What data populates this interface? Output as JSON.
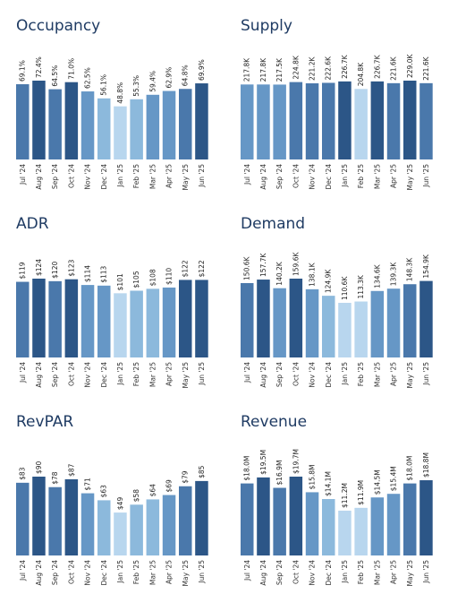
{
  "chart_data": [
    {
      "type": "bar",
      "title": "Occupancy",
      "categories": [
        "Jul '24",
        "Aug '24",
        "Sep '24",
        "Oct '24",
        "Nov '24",
        "Dec '24",
        "Jan '25",
        "Feb '25",
        "Mar '25",
        "Apr '25",
        "May '25",
        "Jun '25"
      ],
      "values": [
        69.1,
        72.4,
        64.5,
        71.0,
        62.5,
        56.1,
        48.8,
        55.3,
        59.4,
        62.9,
        64.8,
        69.9
      ],
      "labels": [
        "69.1%",
        "72.4%",
        "64.5%",
        "71.0%",
        "62.5%",
        "56.1%",
        "48.8%",
        "55.3%",
        "59.4%",
        "62.9%",
        "64.8%",
        "69.9%"
      ],
      "ylim": [
        0,
        72.4
      ],
      "grid": false
    },
    {
      "type": "bar",
      "title": "Supply",
      "categories": [
        "Jul '24",
        "Aug '24",
        "Sep '24",
        "Oct '24",
        "Nov '24",
        "Dec '24",
        "Jan '25",
        "Feb '25",
        "Mar '25",
        "Apr '25",
        "May '25",
        "Jun '25"
      ],
      "values": [
        217.8,
        217.8,
        217.5,
        224.8,
        221.2,
        222.6,
        226.7,
        204.8,
        226.7,
        221.6,
        229.0,
        221.6
      ],
      "labels": [
        "217.8K",
        "217.8K",
        "217.5K",
        "224.8K",
        "221.2K",
        "222.6K",
        "226.7K",
        "204.8K",
        "226.7K",
        "221.6K",
        "229.0K",
        "221.6K"
      ],
      "ylim": [
        0,
        229.0
      ],
      "grid": false
    },
    {
      "type": "bar",
      "title": "ADR",
      "categories": [
        "Jul '24",
        "Aug '24",
        "Sep '24",
        "Oct '24",
        "Nov '24",
        "Dec '24",
        "Jan '25",
        "Feb '25",
        "Mar '25",
        "Apr '25",
        "May '25",
        "Jun '25"
      ],
      "values": [
        119,
        124,
        120,
        123,
        114,
        113,
        101,
        105,
        108,
        110,
        122,
        122
      ],
      "labels": [
        "$119",
        "$124",
        "$120",
        "$123",
        "$114",
        "$113",
        "$101",
        "$105",
        "$108",
        "$110",
        "$122",
        "$122"
      ],
      "ylim": [
        0,
        124
      ],
      "grid": false
    },
    {
      "type": "bar",
      "title": "Demand",
      "categories": [
        "Jul '24",
        "Aug '24",
        "Sep '24",
        "Oct '24",
        "Nov '24",
        "Dec '24",
        "Jan '25",
        "Feb '25",
        "Mar '25",
        "Apr '25",
        "May '25",
        "Jun '25"
      ],
      "values": [
        150.6,
        157.7,
        140.2,
        159.6,
        138.1,
        124.9,
        110.6,
        113.3,
        134.6,
        139.3,
        148.3,
        154.9
      ],
      "labels": [
        "150.6K",
        "157.7K",
        "140.2K",
        "159.6K",
        "138.1K",
        "124.9K",
        "110.6K",
        "113.3K",
        "134.6K",
        "139.3K",
        "148.3K",
        "154.9K"
      ],
      "ylim": [
        0,
        159.6
      ],
      "grid": false
    },
    {
      "type": "bar",
      "title": "RevPAR",
      "categories": [
        "Jul '24",
        "Aug '24",
        "Sep '24",
        "Oct '24",
        "Nov '24",
        "Dec '24",
        "Jan '25",
        "Feb '25",
        "Mar '25",
        "Apr '25",
        "May '25",
        "Jun '25"
      ],
      "values": [
        83,
        90,
        78,
        87,
        71,
        63,
        49,
        58,
        64,
        69,
        79,
        85
      ],
      "labels": [
        "$83",
        "$90",
        "$78",
        "$87",
        "$71",
        "$63",
        "$49",
        "$58",
        "$64",
        "$69",
        "$79",
        "$85"
      ],
      "ylim": [
        0,
        90
      ],
      "grid": false
    },
    {
      "type": "bar",
      "title": "Revenue",
      "categories": [
        "Jul '24",
        "Aug '24",
        "Sep '24",
        "Oct '24",
        "Nov '24",
        "Dec '24",
        "Jan '25",
        "Feb '25",
        "Mar '25",
        "Apr '25",
        "May '25",
        "Jun '25"
      ],
      "values": [
        18.0,
        19.5,
        16.9,
        19.7,
        15.8,
        14.1,
        11.2,
        11.9,
        14.5,
        15.4,
        18.0,
        18.8
      ],
      "labels": [
        "$18.0M",
        "$19.5M",
        "$16.9M",
        "$19.7M",
        "$15.8M",
        "$14.1M",
        "$11.2M",
        "$11.9M",
        "$14.5M",
        "$15.4M",
        "$18.0M",
        "$18.8M"
      ],
      "ylim": [
        0,
        19.7
      ],
      "grid": false
    }
  ],
  "colors": {
    "title": "#1f3b63",
    "scale": [
      "#b8d6ee",
      "#8cb9dc",
      "#6697c6",
      "#4a78ab",
      "#2c5687"
    ]
  }
}
